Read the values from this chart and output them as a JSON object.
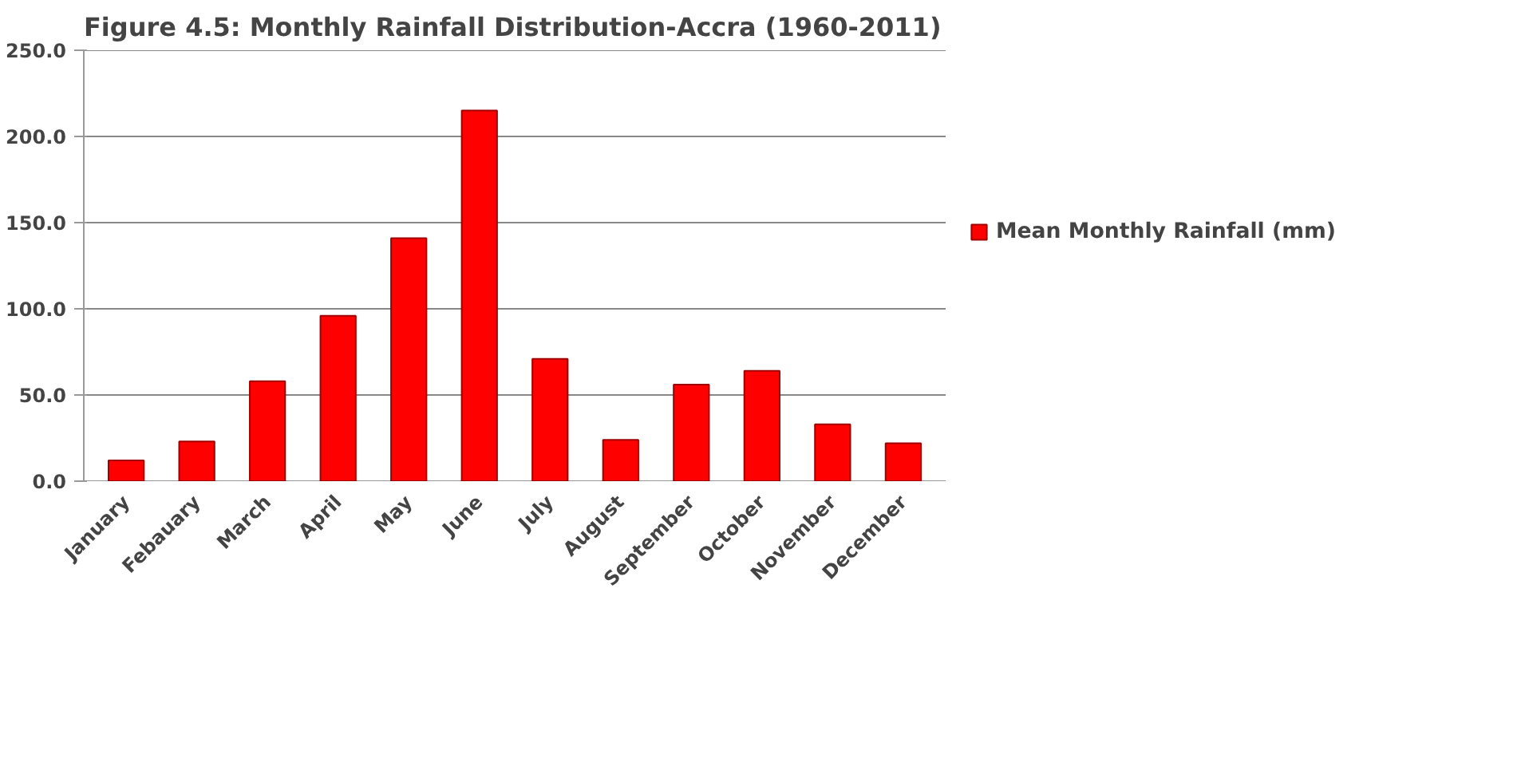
{
  "chart_data": {
    "type": "bar",
    "title": "Figure 4.5: Monthly Rainfall Distribution-Accra (1960-2011)",
    "categories": [
      "January",
      "Febauary",
      "March",
      "April",
      "May",
      "June",
      "July",
      "August",
      "September",
      "October",
      "November",
      "December"
    ],
    "series": [
      {
        "name": "Mean Monthly Rainfall (mm)",
        "color": "#ff0000",
        "values": [
          12,
          23,
          58,
          96,
          141,
          215,
          71,
          24,
          56,
          64,
          33,
          22
        ]
      }
    ],
    "ylim": [
      0,
      250
    ],
    "yticks": [
      {
        "value": 0,
        "label": "0.0"
      },
      {
        "value": 50,
        "label": "50.0"
      },
      {
        "value": 100,
        "label": "100.0"
      },
      {
        "value": 150,
        "label": "150.0"
      },
      {
        "value": 200,
        "label": "200.0"
      },
      {
        "value": 250,
        "label": "250.0"
      }
    ],
    "grid": "y",
    "legend": "right"
  }
}
